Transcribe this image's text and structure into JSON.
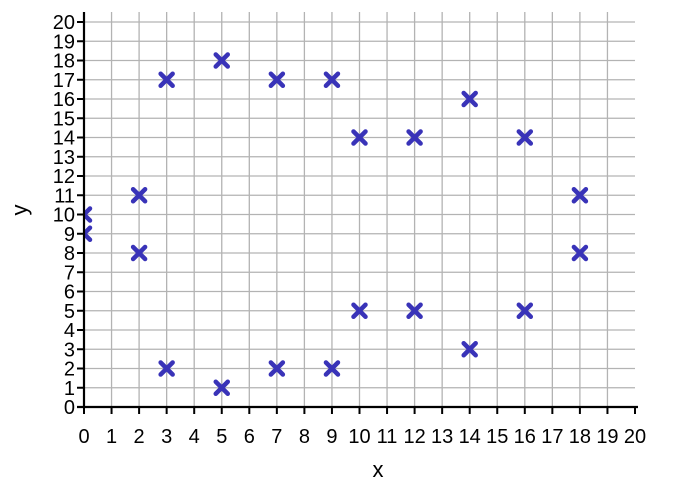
{
  "chart_data": {
    "type": "scatter",
    "title": "",
    "xlabel": "x",
    "ylabel": "y",
    "xlim": [
      0,
      20
    ],
    "ylim": [
      0,
      20
    ],
    "grid": true,
    "legend_position": "none",
    "xticks": [
      0,
      1,
      2,
      3,
      4,
      5,
      6,
      7,
      8,
      9,
      10,
      11,
      12,
      13,
      14,
      15,
      16,
      17,
      18,
      19,
      20
    ],
    "yticks": [
      0,
      1,
      2,
      3,
      4,
      5,
      6,
      7,
      8,
      9,
      10,
      11,
      12,
      13,
      14,
      15,
      16,
      17,
      18,
      19,
      20
    ],
    "marker": {
      "shape": "x-cross",
      "color": "#3933B8",
      "size": 16
    },
    "colors": {
      "grid": "#b3b3b3",
      "axis": "#000000",
      "text": "#000000",
      "background": "#ffffff"
    },
    "points": [
      [
        0,
        9
      ],
      [
        0,
        10
      ],
      [
        2,
        8
      ],
      [
        2,
        11
      ],
      [
        3,
        2
      ],
      [
        3,
        17
      ],
      [
        5,
        1
      ],
      [
        5,
        18
      ],
      [
        7,
        2
      ],
      [
        7,
        17
      ],
      [
        9,
        2
      ],
      [
        9,
        17
      ],
      [
        10,
        5
      ],
      [
        10,
        14
      ],
      [
        12,
        5
      ],
      [
        12,
        14
      ],
      [
        14,
        3
      ],
      [
        14,
        16
      ],
      [
        16,
        5
      ],
      [
        16,
        14
      ],
      [
        18,
        8
      ],
      [
        18,
        11
      ]
    ]
  }
}
